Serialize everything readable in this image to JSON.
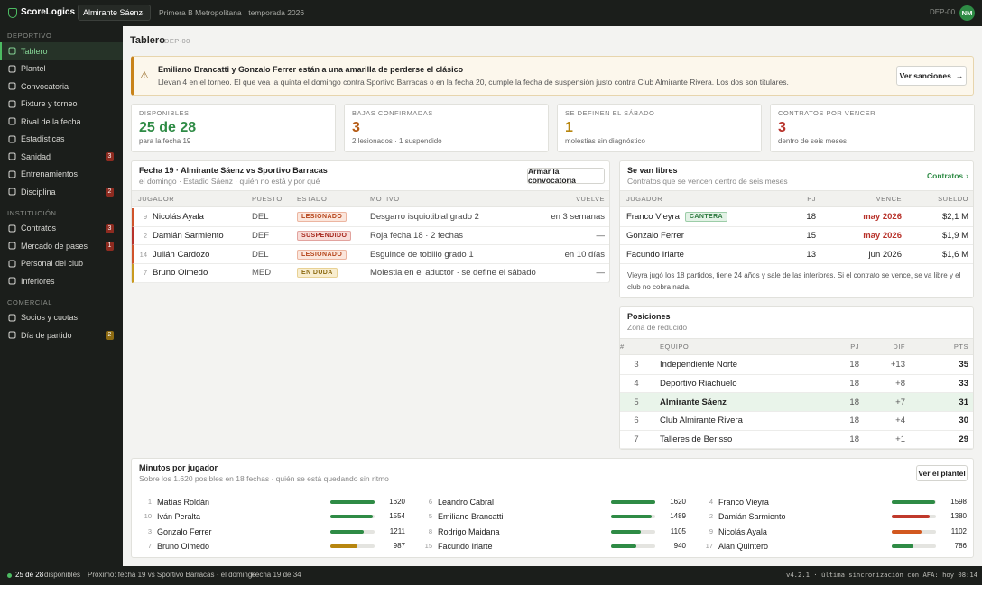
{
  "topbar": {
    "brand": "ScoreLogics",
    "club": "Almirante Sáenz",
    "context": "Primera B Metropolitana · temporada 2026",
    "code": "DEP-00",
    "avatar": "NM"
  },
  "sidebar": {
    "sections": [
      {
        "title": "DEPORTIVO",
        "items": [
          {
            "label": "Tablero"
          },
          {
            "label": "Plantel"
          },
          {
            "label": "Convocatoria"
          },
          {
            "label": "Fixture y torneo"
          },
          {
            "label": "Rival de la fecha"
          },
          {
            "label": "Estadísticas"
          },
          {
            "label": "Sanidad",
            "badge": 3
          },
          {
            "label": "Entrenamientos"
          },
          {
            "label": "Disciplina",
            "badge": 2
          }
        ]
      },
      {
        "title": "INSTITUCIÓN",
        "items": [
          {
            "label": "Contratos",
            "badge": 3
          },
          {
            "label": "Mercado de pases",
            "badge": 1
          },
          {
            "label": "Personal del club"
          },
          {
            "label": "Inferiores"
          }
        ]
      },
      {
        "title": "COMERCIAL",
        "items": [
          {
            "label": "Socios y cuotas"
          },
          {
            "label": "Día de partido",
            "badge": 2
          }
        ]
      }
    ]
  },
  "page": {
    "title": "Tablero",
    "code": "DEP-00"
  },
  "alert": {
    "title": "Emiliano Brancatti y Gonzalo Ferrer están a una amarilla de perderse el clásico",
    "text": "Llevan 4 en el torneo. El que vea la quinta el domingo contra Sportivo Barracas o en la fecha 20, cumple la fecha de suspensión justo contra Club Almirante Rivera. Los dos son titulares.",
    "action": "Ver sanciones"
  },
  "kpis": [
    {
      "label": "DISPONIBLES",
      "value": "25 de 28",
      "note": "para la fecha 19"
    },
    {
      "label": "BAJAS CONFIRMADAS",
      "value": 3,
      "note": "2 lesionados · 1 suspendido"
    },
    {
      "label": "SE DEFINEN EL SÁBADO",
      "value": 1,
      "note": "molestias sin diagnóstico"
    },
    {
      "label": "CONTRATOS POR VENCER",
      "value": 3,
      "note": "dentro de seis meses"
    }
  ],
  "absences": {
    "title": "Fecha 19 · Almirante Sáenz vs Sportivo Barracas",
    "subtitle": "el domingo · Estadio Sáenz · quién no está y por qué",
    "action": "Armar la convocatoria",
    "columns": [
      "JUGADOR",
      "PUESTO",
      "ESTADO",
      "MOTIVO",
      "VUELVE"
    ],
    "rows": [
      {
        "number": 9,
        "name": "Nicolás Ayala",
        "position": "DEL",
        "status": "LESIONADO",
        "reason": "Desgarro isquiotibial grado 2",
        "returns": "en 3 semanas"
      },
      {
        "number": 2,
        "name": "Damián Sarmiento",
        "position": "DEF",
        "status": "SUSPENDIDO",
        "reason": "Roja fecha 18 · 2 fechas",
        "returns": "—"
      },
      {
        "number": 14,
        "name": "Julián Cardozo",
        "position": "DEL",
        "status": "LESIONADO",
        "reason": "Esguince de tobillo grado 1",
        "returns": "en 10 días"
      },
      {
        "number": 7,
        "name": "Bruno Olmedo",
        "position": "MED",
        "status": "EN DUDA",
        "reason": "Molestia en el aductor · se define el sábado",
        "returns": "—"
      }
    ]
  },
  "contracts": {
    "title": "Se van libres",
    "subtitle": "Contratos que se vencen dentro de seis meses",
    "action": "Contratos",
    "columns": [
      "JUGADOR",
      "PJ",
      "VENCE",
      "SUELDO"
    ],
    "rows": [
      {
        "name": "Franco Vieyra",
        "tag": "CANTERA",
        "matches": 18,
        "expires": "may 2026",
        "salary": "$2,1 M"
      },
      {
        "name": "Gonzalo Ferrer",
        "matches": 15,
        "expires": "may 2026",
        "salary": "$1,9 M"
      },
      {
        "name": "Facundo Iriarte",
        "matches": 13,
        "expires": "jun 2026",
        "salary": "$1,6 M"
      }
    ],
    "note": "Vieyra jugó los 18 partidos, tiene 24 años y sale de las inferiores. Si el contrato se vence, se va libre y el club no cobra nada."
  },
  "standings": {
    "title": "Posiciones",
    "subtitle": "Zona de reducido",
    "columns": [
      "#",
      "EQUIPO",
      "PJ",
      "DIF",
      "PTS"
    ],
    "rows": [
      {
        "pos": 3,
        "team": "Independiente Norte",
        "played": 18,
        "diff": "+13",
        "points": 35
      },
      {
        "pos": 4,
        "team": "Deportivo Riachuelo",
        "played": 18,
        "diff": "+8",
        "points": 33
      },
      {
        "pos": 5,
        "team": "Almirante Sáenz",
        "played": 18,
        "diff": "+7",
        "points": 31
      },
      {
        "pos": 6,
        "team": "Club Almirante Rivera",
        "played": 18,
        "diff": "+4",
        "points": 30
      },
      {
        "pos": 7,
        "team": "Talleres de Berisso",
        "played": 18,
        "diff": "+1",
        "points": 29
      }
    ]
  },
  "minutes": {
    "title": "Minutos por jugador",
    "subtitle": "Sobre los 1.620 posibles en 18 fechas · quién se está quedando sin ritmo",
    "action": "Ver el plantel",
    "players": [
      {
        "number": 1,
        "name": "Matías Roldán",
        "minutes": 1620,
        "color": "#2e8b45"
      },
      {
        "number": 10,
        "name": "Iván Peralta",
        "minutes": 1554,
        "color": "#2e8b45"
      },
      {
        "number": 3,
        "name": "Gonzalo Ferrer",
        "minutes": 1211,
        "color": "#2e8b45"
      },
      {
        "number": 7,
        "name": "Bruno Olmedo",
        "minutes": 987,
        "color": "#b7860f"
      },
      {
        "number": 6,
        "name": "Leandro Cabral",
        "minutes": 1620,
        "color": "#2e8b45"
      },
      {
        "number": 5,
        "name": "Emiliano Brancatti",
        "minutes": 1489,
        "color": "#2e8b45"
      },
      {
        "number": 8,
        "name": "Rodrigo Maidana",
        "minutes": 1105,
        "color": "#2e8b45"
      },
      {
        "number": 15,
        "name": "Facundo Iriarte",
        "minutes": 940,
        "color": "#2e8b45"
      },
      {
        "number": 4,
        "name": "Franco Vieyra",
        "minutes": 1598,
        "color": "#2e8b45"
      },
      {
        "number": 2,
        "name": "Damián Sarmiento",
        "minutes": 1380,
        "color": "#c0392b"
      },
      {
        "number": 9,
        "name": "Nicolás Ayala",
        "minutes": 1102,
        "color": "#d2581f"
      },
      {
        "number": 17,
        "name": "Alan Quintero",
        "minutes": 786,
        "color": "#2e8b45"
      }
    ]
  },
  "footer": {
    "available": "25 de 28",
    "available_label": "disponibles",
    "next": "Próximo: fecha 19 vs Sportivo Barracas · el domingo",
    "round": "Fecha 19 de 34",
    "version": "v4.2.1 · última sincronización con AFA: hoy 08:14"
  }
}
